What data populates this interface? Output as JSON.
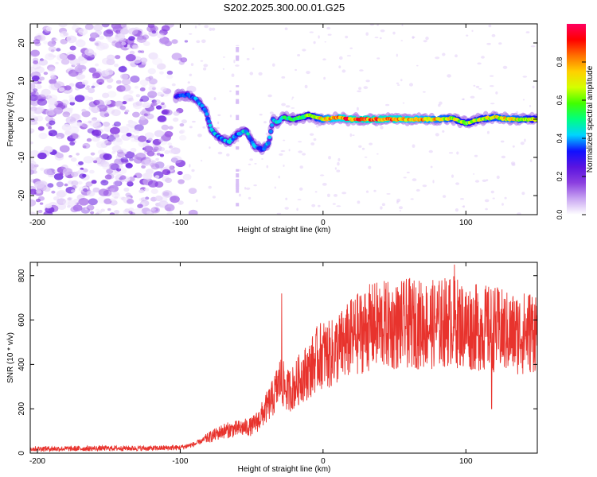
{
  "figure_title": "S202.2025.300.00.01.G25",
  "chart_data": [
    {
      "type": "heatmap",
      "title": "S202.2025.300.00.01.G25",
      "xlabel": "Height of straight line (km)",
      "ylabel": "Frequency (Hz)",
      "xlim": [
        -205,
        150
      ],
      "ylim": [
        -25,
        25
      ],
      "xticks": [
        "-200",
        "-100",
        "0",
        "100"
      ],
      "yticks": [
        "20",
        "10",
        "0",
        "-10",
        "-20"
      ],
      "colorbar": {
        "label": "Normalized spectral amplitude",
        "range": [
          0,
          1
        ],
        "ticks": [
          "0.0",
          "0.2",
          "0.4",
          "0.6",
          "0.8"
        ],
        "colors": [
          "#ffffff",
          "#c9a6f2",
          "#8b3fe0",
          "#5a14e0",
          "#1010ff",
          "#00d4ff",
          "#00ff80",
          "#40ff00",
          "#d4ff00",
          "#ffd000",
          "#ff7000",
          "#ff0000",
          "#ff0060"
        ]
      },
      "ridge": {
        "x": [
          -103,
          -95,
          -88,
          -82,
          -78,
          -72,
          -66,
          -60,
          -54,
          -48,
          -42,
          -38,
          -35,
          -32,
          -28,
          -20,
          -10,
          0,
          10,
          20,
          40,
          60,
          80,
          90,
          100,
          110,
          120,
          130,
          140,
          150
        ],
        "frequency": [
          6,
          6.5,
          5,
          2,
          -3,
          -5,
          -6,
          -4,
          -3,
          -7,
          -8,
          -6,
          0,
          -1,
          0.5,
          0,
          1,
          0,
          0.4,
          0,
          0,
          0,
          0,
          0.3,
          -1,
          0,
          0.5,
          0,
          0,
          0
        ],
        "peak_amplitude": [
          0.35,
          0.4,
          0.45,
          0.45,
          0.5,
          0.45,
          0.5,
          0.45,
          0.5,
          0.45,
          0.4,
          0.5,
          0.45,
          0.5,
          0.55,
          0.6,
          0.7,
          0.85,
          0.95,
          1.0,
          1.0,
          0.95,
          0.85,
          0.8,
          0.7,
          0.75,
          0.8,
          0.85,
          0.8,
          0.7
        ]
      },
      "noise_region_x": [
        -205,
        -95
      ]
    },
    {
      "type": "line",
      "xlabel": "Height of straight line (km)",
      "ylabel": "SNR (10 * v/v)",
      "xlim": [
        -205,
        150
      ],
      "ylim": [
        0,
        860
      ],
      "xticks": [
        "-200",
        "-100",
        "0",
        "100"
      ],
      "yticks": [
        "0",
        "200",
        "400",
        "600",
        "800"
      ],
      "line_color": "#e8332d",
      "series": [
        {
          "name": "SNR",
          "x": [
            -205,
            -180,
            -150,
            -120,
            -100,
            -90,
            -80,
            -70,
            -60,
            -50,
            -45,
            -40,
            -35,
            -30,
            -25,
            -20,
            -15,
            -10,
            -5,
            0,
            5,
            10,
            15,
            20,
            25,
            30,
            40,
            50,
            60,
            70,
            80,
            90,
            100,
            110,
            120,
            130,
            140,
            150
          ],
          "values": [
            20,
            20,
            22,
            22,
            25,
            40,
            70,
            100,
            110,
            120,
            150,
            200,
            250,
            330,
            280,
            300,
            350,
            370,
            420,
            450,
            440,
            470,
            490,
            520,
            540,
            560,
            580,
            570,
            585,
            580,
            580,
            600,
            570,
            565,
            560,
            540,
            540,
            560
          ]
        }
      ],
      "annotations": [
        {
          "x": -29,
          "value": 720,
          "label": "spike"
        },
        {
          "x": 92,
          "value": 850,
          "label": "peak"
        },
        {
          "x": 118,
          "value": 200,
          "label": "dip"
        }
      ]
    }
  ]
}
